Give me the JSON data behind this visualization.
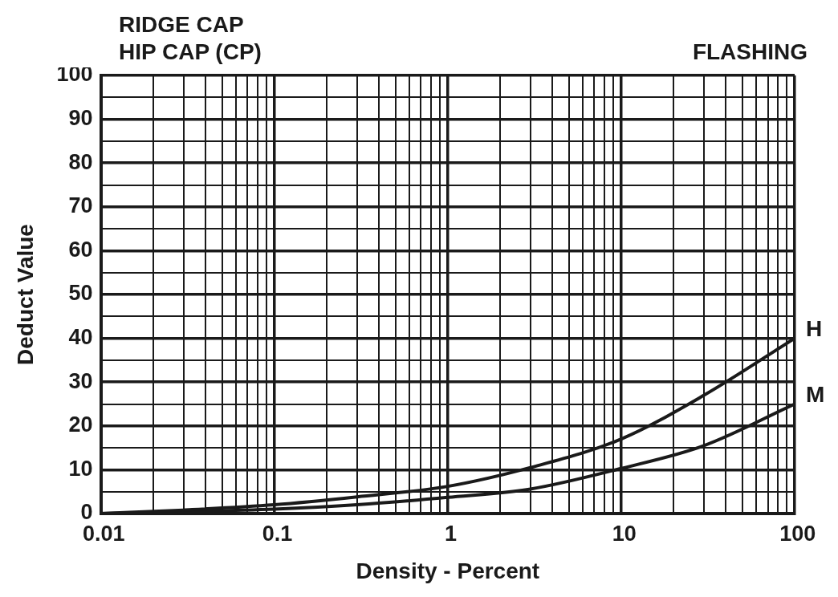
{
  "chart_data": {
    "type": "line",
    "title": "RIDGE CAP",
    "subtitle": "HIP CAP (CP)",
    "annotations": [
      "FLASHING"
    ],
    "xlabel": "Density - Percent",
    "ylabel": "Deduct Value",
    "log": "x",
    "grid": true,
    "legend": false,
    "marker": "none",
    "line_style": "solid",
    "xlim": [
      0.01,
      100
    ],
    "ylim": [
      0,
      100
    ],
    "xticks": [
      0.01,
      {
        "value": 0.02,
        "label": null
      },
      {
        "value": 0.03,
        "label": null
      },
      {
        "value": 0.04,
        "label": null
      },
      {
        "value": 0.05,
        "label": null
      },
      {
        "value": 0.06,
        "label": null
      },
      {
        "value": 0.07,
        "label": null
      },
      {
        "value": 0.08,
        "label": null
      },
      {
        "value": 0.09,
        "label": null
      },
      0.1,
      {
        "value": 0.2,
        "label": null
      },
      {
        "value": 0.3,
        "label": null
      },
      {
        "value": 0.4,
        "label": null
      },
      {
        "value": 0.5,
        "label": null
      },
      {
        "value": 0.6,
        "label": null
      },
      {
        "value": 0.7,
        "label": null
      },
      {
        "value": 0.8,
        "label": null
      },
      {
        "value": 0.9,
        "label": null
      },
      1,
      {
        "value": 2,
        "label": null
      },
      {
        "value": 3,
        "label": null
      },
      {
        "value": 4,
        "label": null
      },
      {
        "value": 5,
        "label": null
      },
      {
        "value": 6,
        "label": null
      },
      {
        "value": 7,
        "label": null
      },
      {
        "value": 8,
        "label": null
      },
      {
        "value": 9,
        "label": null
      },
      10,
      {
        "value": 20,
        "label": null
      },
      {
        "value": 30,
        "label": null
      },
      {
        "value": 40,
        "label": null
      },
      {
        "value": 50,
        "label": null
      },
      {
        "value": 60,
        "label": null
      },
      {
        "value": 70,
        "label": null
      },
      {
        "value": 80,
        "label": null
      },
      {
        "value": 90,
        "label": null
      },
      100
    ],
    "yticks": [
      0,
      {
        "value": 5,
        "label": null
      },
      10,
      {
        "value": 15,
        "label": null
      },
      20,
      {
        "value": 25,
        "label": null
      },
      30,
      {
        "value": 35,
        "label": null
      },
      40,
      {
        "value": 45,
        "label": null
      },
      50,
      {
        "value": 55,
        "label": null
      },
      60,
      {
        "value": 65,
        "label": null
      },
      70,
      {
        "value": 75,
        "label": null
      },
      80,
      {
        "value": 85,
        "label": null
      },
      90,
      {
        "value": 95,
        "label": null
      },
      100
    ],
    "x": [
      0.01,
      0.03,
      0.1,
      0.3,
      1,
      3,
      10,
      30,
      100
    ],
    "series": [
      {
        "name": "H",
        "color": "#1a1a1a",
        "values": [
          0,
          0.8,
          2,
          3.8,
          6.2,
          10.5,
          17,
          27,
          40
        ]
      },
      {
        "name": "M",
        "color": "#1a1a1a",
        "values": [
          0,
          0.4,
          1,
          2,
          3.7,
          5.6,
          10.3,
          15.5,
          25
        ]
      }
    ]
  }
}
